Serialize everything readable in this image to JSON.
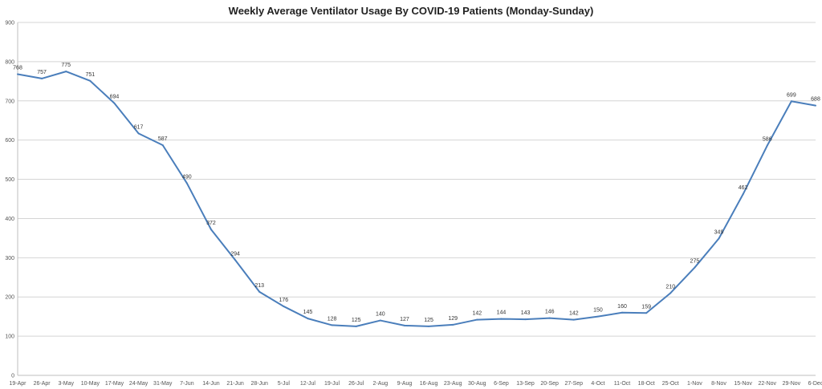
{
  "chart_data": {
    "type": "line",
    "title": "Weekly Average Ventilator Usage By COVID-19 Patients (Monday-Sunday)",
    "xlabel": "",
    "ylabel": "",
    "ylim": [
      0,
      900
    ],
    "yticks": [
      "0",
      "100",
      "200",
      "300",
      "400",
      "500",
      "600",
      "700",
      "800",
      "900"
    ],
    "grid": "horizontal",
    "legend": "none",
    "line_color": "#4a7ebb",
    "categories": [
      "19-Apr",
      "26-Apr",
      "3-May",
      "10-May",
      "17-May",
      "24-May",
      "31-May",
      "7-Jun",
      "14-Jun",
      "21-Jun",
      "28-Jun",
      "5-Jul",
      "12-Jul",
      "19-Jul",
      "26-Jul",
      "2-Aug",
      "9-Aug",
      "16-Aug",
      "23-Aug",
      "30-Aug",
      "6-Sep",
      "13-Sep",
      "20-Sep",
      "27-Sep",
      "4-Oct",
      "11-Oct",
      "18-Oct",
      "25-Oct",
      "1-Nov",
      "8-Nov",
      "15-Nov",
      "22-Nov",
      "29-Nov",
      "6-Dec"
    ],
    "series": [
      {
        "values": [
          768,
          757,
          775,
          751,
          694,
          617,
          587,
          490,
          372,
          294,
          213,
          176,
          145,
          128,
          125,
          140,
          127,
          125,
          129,
          142,
          144,
          143,
          146,
          142,
          150,
          160,
          159,
          210,
          275,
          349,
          462,
          586,
          699,
          688
        ]
      }
    ]
  }
}
